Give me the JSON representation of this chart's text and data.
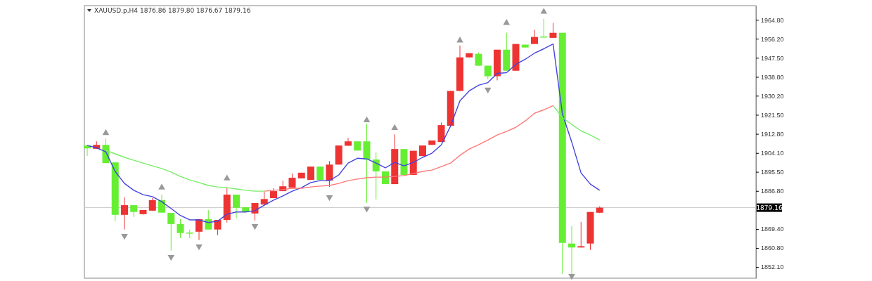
{
  "chart_data": {
    "type": "candlestick",
    "title": "XAUUSD.p,H4  1876.86 1879.80 1876.67 1879.16",
    "categories": [
      null,
      null,
      null,
      null,
      null,
      null,
      null,
      null,
      null,
      null,
      null,
      null,
      null,
      null,
      null,
      null,
      null,
      null,
      null,
      null,
      null,
      null,
      null,
      null,
      null,
      null,
      null,
      null,
      null,
      null,
      null,
      null,
      null,
      null,
      null,
      null,
      null,
      null,
      null,
      null,
      null,
      null,
      null,
      null,
      null,
      null,
      null,
      null,
      null,
      null,
      null,
      null,
      null,
      null,
      null,
      null
    ],
    "ohlc": [
      [
        1907.5,
        1907.6,
        1902.7,
        1906.2
      ],
      [
        1906.0,
        1909.4,
        1905.9,
        1907.8
      ],
      [
        1907.8,
        1910.7,
        1899.5,
        1899.5
      ],
      [
        1899.8,
        1899.8,
        1873.0,
        1875.9
      ],
      [
        1875.9,
        1883.9,
        1869.2,
        1880.3
      ],
      [
        1880.3,
        1880.3,
        1874.9,
        1877.2
      ],
      [
        1876.2,
        1878.1,
        1876.0,
        1878.1
      ],
      [
        1877.8,
        1883.5,
        1877.6,
        1882.6
      ],
      [
        1882.6,
        1885.1,
        1876.9,
        1876.9
      ],
      [
        1876.8,
        1876.8,
        1859.6,
        1871.7
      ],
      [
        1871.7,
        1873.9,
        1865.3,
        1867.6
      ],
      [
        1867.8,
        1869.2,
        1865.3,
        1867.5
      ],
      [
        1868.2,
        1873.9,
        1864.4,
        1873.9
      ],
      [
        1873.9,
        1878.1,
        1869.2,
        1869.2
      ],
      [
        1869.2,
        1873.6,
        1866.6,
        1873.6
      ],
      [
        1873.6,
        1888.3,
        1872.4,
        1885.1
      ],
      [
        1885.1,
        1885.1,
        1874.3,
        1879.1
      ],
      [
        1879.4,
        1879.4,
        1877.2,
        1877.2
      ],
      [
        1876.5,
        1881.3,
        1873.3,
        1881.3
      ],
      [
        1880.6,
        1886.4,
        1880.6,
        1883.1
      ],
      [
        1883.5,
        1888.0,
        1883.5,
        1886.7
      ],
      [
        1886.7,
        1891.4,
        1886.7,
        1888.9
      ],
      [
        1888.3,
        1894.7,
        1888.3,
        1892.8
      ],
      [
        1892.5,
        1895.1,
        1892.5,
        1895.1
      ],
      [
        1891.8,
        1897.9,
        1891.8,
        1897.9
      ],
      [
        1897.9,
        1897.9,
        1891.5,
        1891.8
      ],
      [
        1891.5,
        1900.4,
        1888.6,
        1898.8
      ],
      [
        1898.8,
        1907.5,
        1898.8,
        1907.5
      ],
      [
        1907.4,
        1911.0,
        1907.4,
        1909.4
      ],
      [
        1909.4,
        1909.4,
        1905.2,
        1905.2
      ],
      [
        1909.4,
        1917.4,
        1881.3,
        1901.1
      ],
      [
        1901.1,
        1904.3,
        1882.9,
        1895.7
      ],
      [
        1895.7,
        1895.7,
        1889.9,
        1889.9
      ],
      [
        1889.9,
        1912.6,
        1889.9,
        1905.9
      ],
      [
        1905.9,
        1905.9,
        1894.1,
        1894.1
      ],
      [
        1894.1,
        1905.1,
        1894.1,
        1905.1
      ],
      [
        1902.7,
        1907.5,
        1902.7,
        1907.5
      ],
      [
        1907.8,
        1909.8,
        1907.8,
        1909.8
      ],
      [
        1909.1,
        1918.0,
        1909.1,
        1916.8
      ],
      [
        1916.5,
        1932.4,
        1916.5,
        1932.4
      ],
      [
        1932.4,
        1953.1,
        1932.4,
        1947.7
      ],
      [
        1947.7,
        1949.6,
        1947.7,
        1949.6
      ],
      [
        1949.3,
        1949.9,
        1943.9,
        1943.9
      ],
      [
        1943.9,
        1943.9,
        1937.8,
        1939.1
      ],
      [
        1939.1,
        1951.2,
        1937.2,
        1951.2
      ],
      [
        1951.2,
        1958.9,
        1941.6,
        1941.6
      ],
      [
        1941.6,
        1953.8,
        1941.6,
        1953.8
      ],
      [
        1953.5,
        1953.5,
        1952.2,
        1952.2
      ],
      [
        1953.8,
        1960.2,
        1953.8,
        1957.0
      ],
      [
        1957.2,
        1965.3,
        1956.9,
        1956.9
      ],
      [
        1956.6,
        1963.4,
        1956.6,
        1958.9
      ],
      [
        1958.9,
        1958.9,
        1849.0,
        1863.1
      ],
      [
        1862.8,
        1870.8,
        1848.0,
        1861.0
      ],
      [
        1861.0,
        1872.7,
        1861.0,
        1861.6
      ],
      [
        1862.8,
        1877.2,
        1859.9,
        1877.2
      ],
      [
        1876.86,
        1879.8,
        1876.67,
        1879.16
      ]
    ],
    "colors": [
      "#66ee33",
      "#ee3333",
      "#66ee33",
      "#66ee33",
      "#ee3333",
      "#66ee33",
      "#ee3333",
      "#ee3333",
      "#66ee33",
      "#66ee33",
      "#66ee33",
      "#66ee33",
      "#ee3333",
      "#66ee33",
      "#ee3333",
      "#ee3333",
      "#66ee33",
      "#66ee33",
      "#ee3333",
      "#ee3333",
      "#ee3333",
      "#ee3333",
      "#ee3333",
      "#ee3333",
      "#ee3333",
      "#66ee33",
      "#ee3333",
      "#ee3333",
      "#ee3333",
      "#66ee33",
      "#66ee33",
      "#66ee33",
      "#66ee33",
      "#ee3333",
      "#66ee33",
      "#ee3333",
      "#ee3333",
      "#ee3333",
      "#ee3333",
      "#ee3333",
      "#ee3333",
      "#ee3333",
      "#66ee33",
      "#66ee33",
      "#ee3333",
      "#66ee33",
      "#ee3333",
      "#66ee33",
      "#ee3333",
      "#66ee33",
      "#ee3333",
      "#66ee33",
      "#66ee33",
      "#ee3333",
      "#ee3333",
      "#ee3333"
    ],
    "series": [
      {
        "type": "line",
        "color": "#4444dd",
        "values": [
          1907.5,
          1906.5,
          1904.6,
          1895.7,
          1890.2,
          1887.1,
          1885.1,
          1884.2,
          1881.9,
          1878.8,
          1875.6,
          1873.6,
          1873.6,
          1872.4,
          1873.0,
          1876.2,
          1877.2,
          1877.2,
          1877.8,
          1880.3,
          1882.6,
          1884.5,
          1886.7,
          1888.3,
          1890.6,
          1891.5,
          1891.5,
          1894.1,
          1899.5,
          1901.7,
          1901.4,
          1899.5,
          1897.3,
          1899.8,
          1898.2,
          1899.8,
          1902.1,
          1904.0,
          1907.8,
          1916.4,
          1927.9,
          1932.4,
          1935.0,
          1936.2,
          1940.4,
          1940.7,
          1944.5,
          1946.8,
          1949.6,
          1951.6,
          1953.8,
          1921.9,
          1909.1,
          1895.0,
          1889.9,
          1887.1
        ]
      },
      {
        "type": "line",
        "color": "#77ee66",
        "values": [
          null,
          null,
          1905.3,
          1903.7,
          1902.1,
          1900.8,
          1899.5,
          1898.2,
          1897.0,
          1895.4,
          1893.4,
          1891.8,
          1890.6,
          1889.3,
          1888.6,
          1888.3,
          1887.7,
          1887.1,
          1886.7,
          1886.7,
          null,
          null,
          null,
          null,
          null,
          null,
          null,
          null,
          null,
          null,
          null,
          null,
          null,
          null,
          null,
          null,
          null,
          null,
          null,
          null,
          null,
          null,
          null,
          null,
          null,
          null,
          null,
          null,
          null,
          null,
          1925.7,
          1920.3,
          1917.1,
          1914.2,
          1912.3,
          1910.0
        ]
      },
      {
        "type": "line",
        "color": "#ff7777",
        "values": [
          null,
          null,
          null,
          null,
          null,
          null,
          null,
          null,
          null,
          null,
          null,
          null,
          null,
          null,
          null,
          null,
          null,
          null,
          null,
          1886.7,
          1887.1,
          1887.4,
          1888.0,
          1888.0,
          1888.6,
          1889.0,
          1889.3,
          1890.2,
          1891.5,
          1892.2,
          1892.8,
          1893.1,
          1893.1,
          1893.4,
          1893.8,
          1894.7,
          1895.7,
          1896.3,
          1897.9,
          1899.5,
          1903.0,
          1905.9,
          1907.8,
          1910.0,
          1912.3,
          1913.9,
          1915.8,
          1918.7,
          1922.2,
          1923.8,
          1925.7,
          null,
          null,
          null,
          null,
          null
        ]
      },
      {
        "type": "scatter",
        "color": "#999999",
        "marker": "triangle",
        "values": [
          null,
          null,
          1913.2,
          null,
          null,
          null,
          null,
          null,
          1888.3,
          null,
          null,
          null,
          null,
          null,
          null,
          1892.5,
          null,
          null,
          null,
          null,
          null,
          null,
          null,
          null,
          null,
          null,
          null,
          null,
          null,
          null,
          1919.0,
          null,
          null,
          1915.5,
          null,
          null,
          null,
          null,
          null,
          null,
          1955.4,
          null,
          null,
          null,
          null,
          1963.4,
          null,
          null,
          null,
          1968.5,
          null,
          null,
          null,
          null,
          null,
          null
        ]
      },
      {
        "type": "scatter",
        "color": "#999999",
        "marker": "triangle-down",
        "values": [
          null,
          null,
          null,
          null,
          1866.3,
          null,
          null,
          null,
          null,
          1856.7,
          null,
          null,
          1861.5,
          null,
          null,
          null,
          null,
          null,
          1870.8,
          null,
          null,
          null,
          null,
          null,
          null,
          null,
          1883.9,
          null,
          null,
          null,
          1878.7,
          null,
          null,
          null,
          null,
          null,
          null,
          null,
          null,
          null,
          null,
          null,
          null,
          1933.0,
          null,
          null,
          null,
          null,
          null,
          null,
          null,
          null,
          1848.0,
          null,
          null,
          null
        ]
      }
    ],
    "ylim": [
      1847.0,
      1971.3
    ],
    "yticks": [
      {
        "value": 1852.1,
        "label": "1852.10"
      },
      {
        "value": 1860.8,
        "label": "1860.80"
      },
      {
        "value": 1869.4,
        "label": "1869.40"
      },
      {
        "value": 1886.8,
        "label": "1886.80"
      },
      {
        "value": 1895.5,
        "label": "1895.50"
      },
      {
        "value": 1904.1,
        "label": "1904.10"
      },
      {
        "value": 1912.8,
        "label": "1912.80"
      },
      {
        "value": 1921.5,
        "label": "1921.50"
      },
      {
        "value": 1930.2,
        "label": "1930.20"
      },
      {
        "value": 1938.8,
        "label": "1938.80"
      },
      {
        "value": 1947.5,
        "label": "1947.50"
      },
      {
        "value": 1956.2,
        "label": "1956.20"
      },
      {
        "value": 1964.8,
        "label": "1964.80"
      }
    ],
    "ref_lines": [
      {
        "axis": "y",
        "value": 1879.16,
        "label": "1879.16",
        "color": "#c8c8c8"
      }
    ],
    "tick_labels": "y",
    "grid": false
  }
}
